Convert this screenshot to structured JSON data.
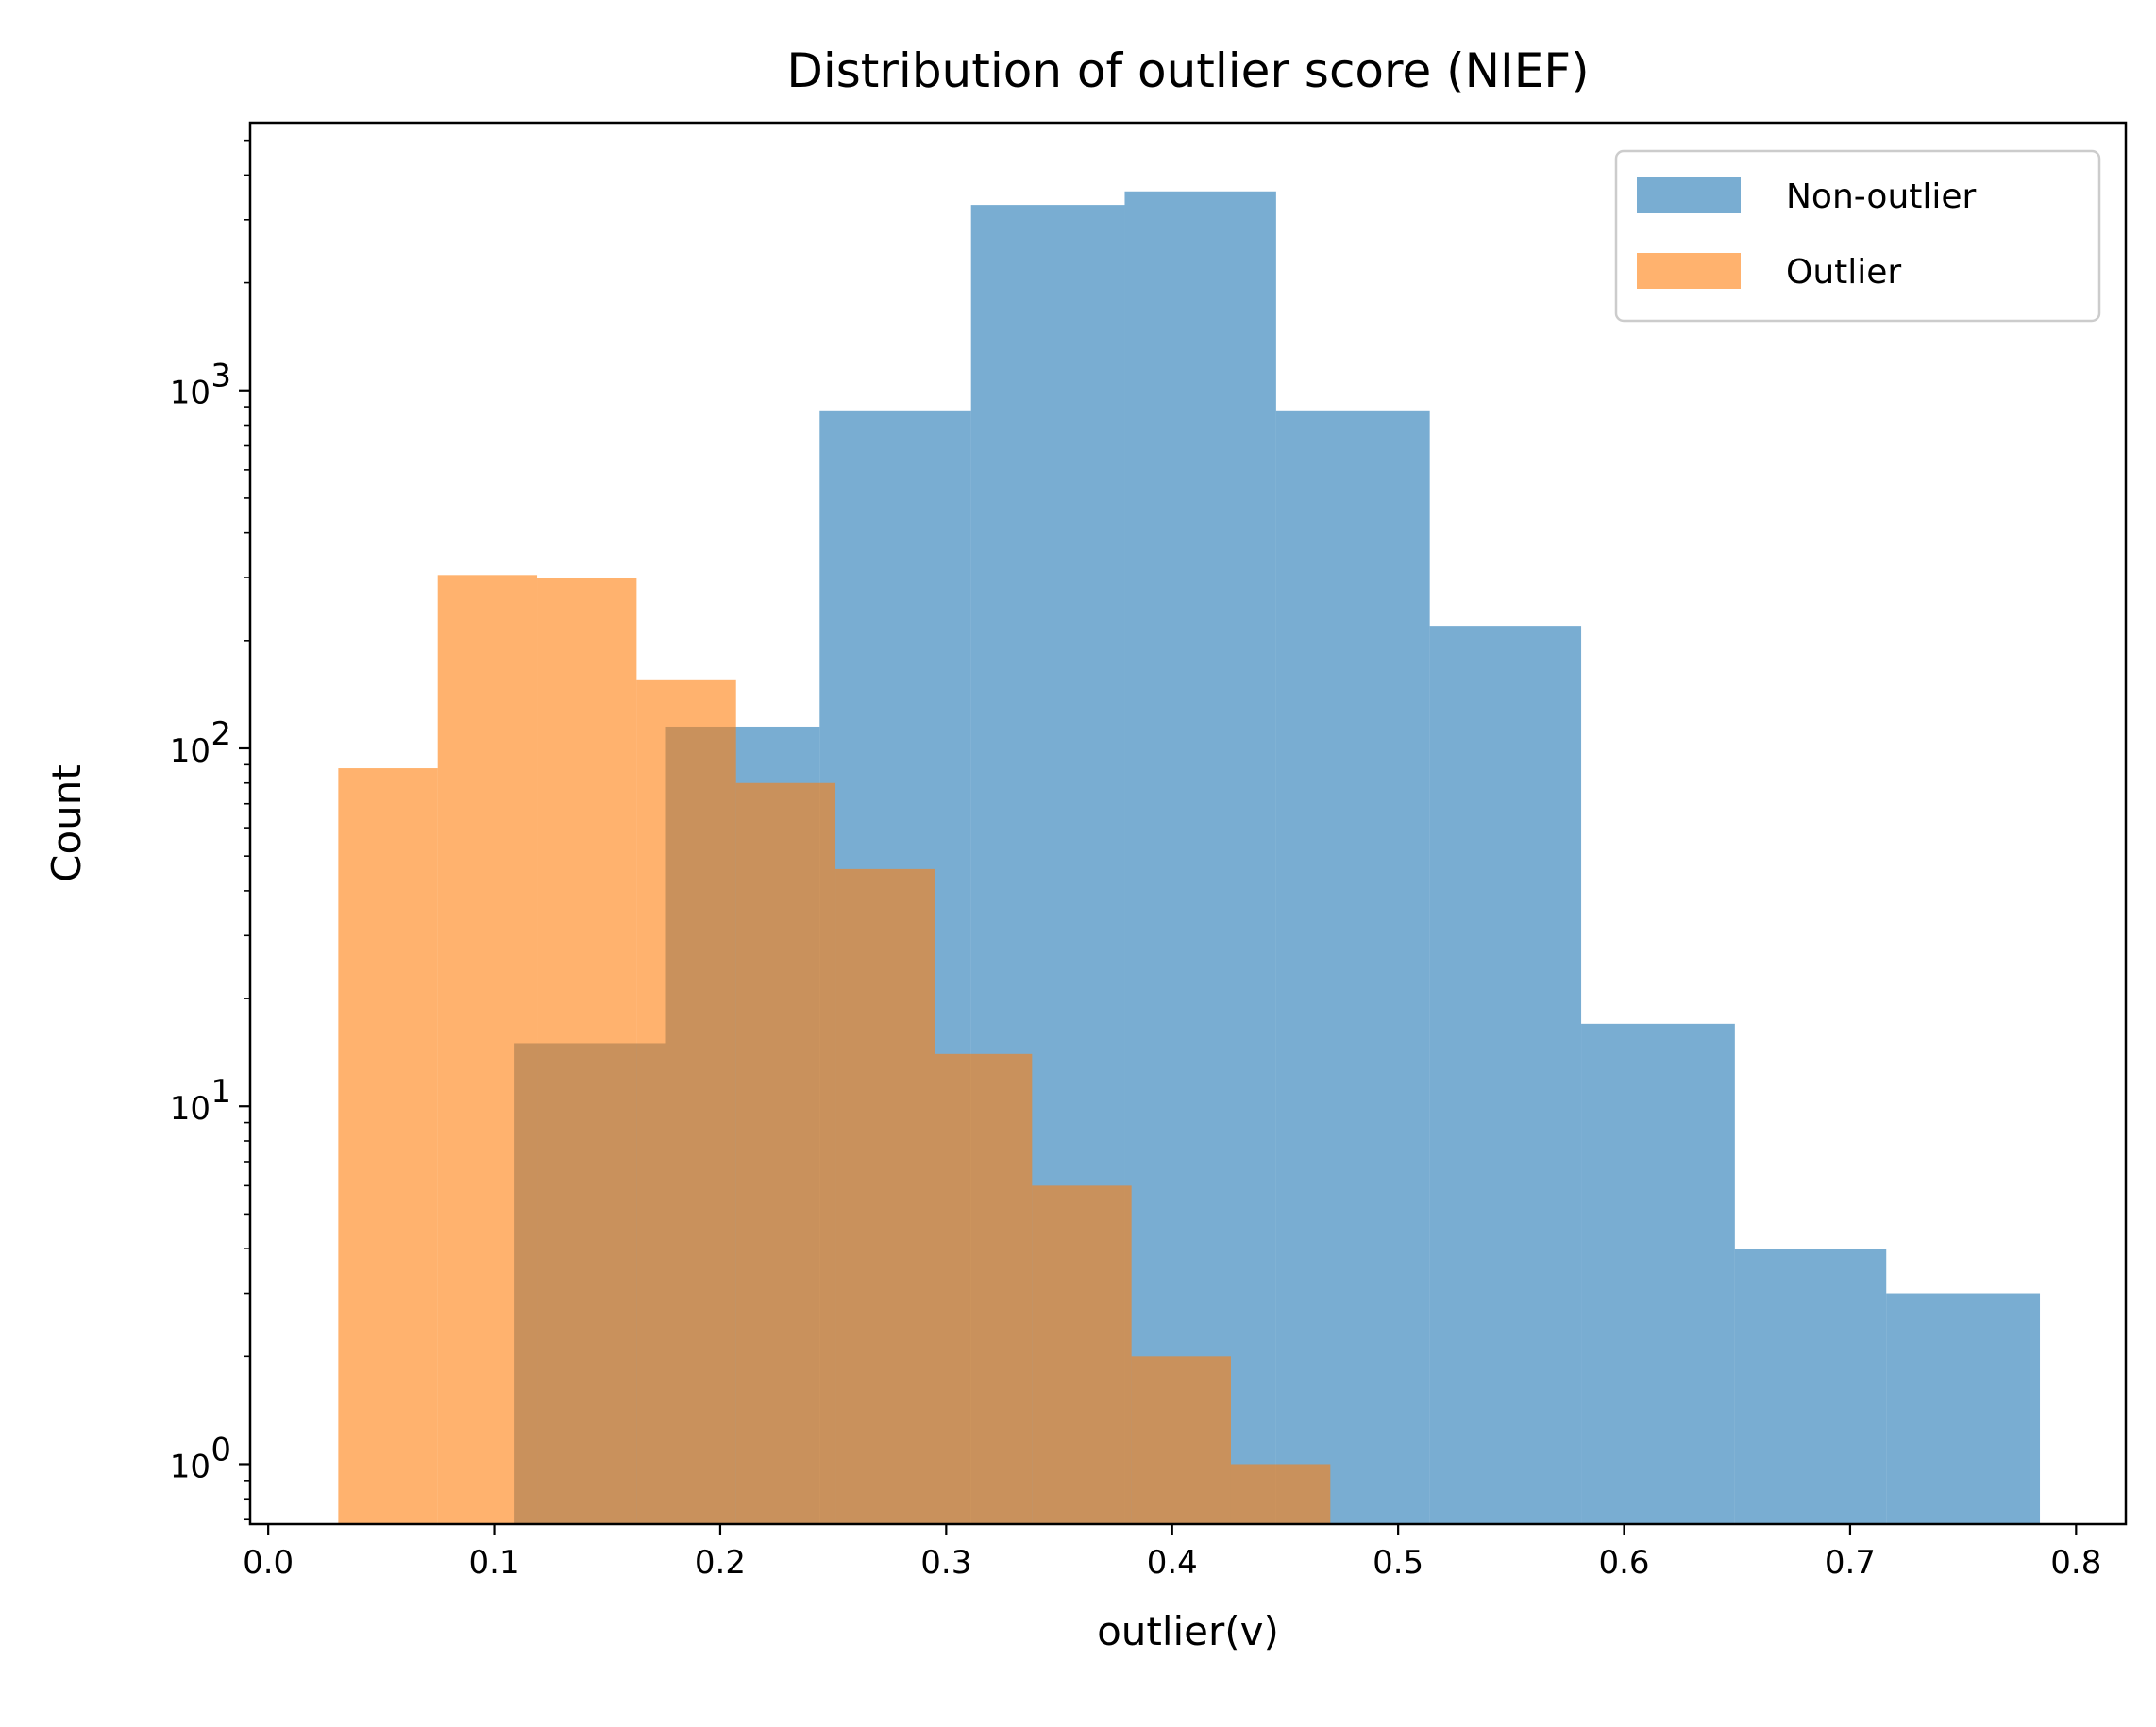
{
  "chart_data": {
    "type": "bar",
    "title": "Distribution of outlier score (NIEF)",
    "xlabel": "outlier(v)",
    "ylabel": "Count",
    "yscale": "log",
    "xlim": [
      -0.008,
      0.822
    ],
    "ylim": [
      0.68,
      5600
    ],
    "x_ticks": [
      "0.0",
      "0.1",
      "0.2",
      "0.3",
      "0.4",
      "0.5",
      "0.6",
      "0.7",
      "0.8"
    ],
    "y_ticks": [
      {
        "base": "10",
        "exp": "0"
      },
      {
        "base": "10",
        "exp": "1"
      },
      {
        "base": "10",
        "exp": "2"
      },
      {
        "base": "10",
        "exp": "3"
      }
    ],
    "legend_position": "top-right",
    "grid": false,
    "series": [
      {
        "name": "Non-outlier",
        "color": "#1f77b4",
        "opacity": 0.6,
        "bin_edges": [
          0.109,
          0.176,
          0.244,
          0.311,
          0.379,
          0.446,
          0.514,
          0.581,
          0.649,
          0.716,
          0.784
        ],
        "counts": [
          15,
          115,
          880,
          3300,
          3600,
          880,
          220,
          17,
          4,
          3
        ]
      },
      {
        "name": "Outlier",
        "color": "#ff7f0e",
        "opacity": 0.6,
        "bin_edges": [
          0.031,
          0.075,
          0.119,
          0.163,
          0.207,
          0.251,
          0.295,
          0.338,
          0.382,
          0.426,
          0.47
        ],
        "counts": [
          88,
          305,
          300,
          155,
          80,
          46,
          14,
          6,
          2,
          1
        ]
      }
    ]
  }
}
